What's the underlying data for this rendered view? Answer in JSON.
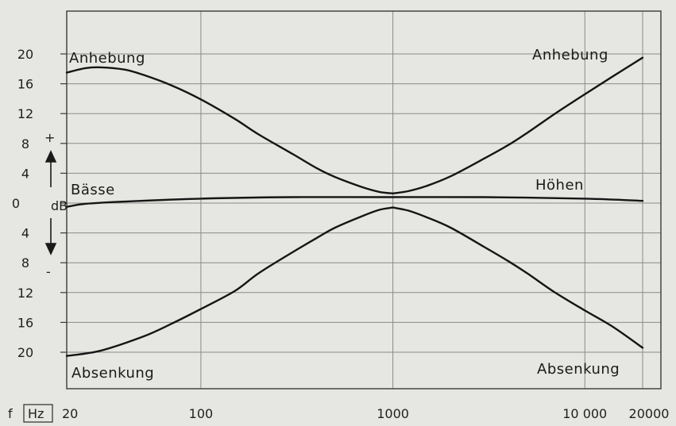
{
  "chart_data": {
    "type": "line",
    "x_scale": "log",
    "xlim": [
      20,
      20000
    ],
    "ylim": [
      -20,
      20
    ],
    "grid": true,
    "x_ticks": [
      {
        "value": 20,
        "label": "20"
      },
      {
        "value": 100,
        "label": "100"
      },
      {
        "value": 1000,
        "label": "1000"
      },
      {
        "value": 10000,
        "label": "10 000"
      },
      {
        "value": 20000,
        "label": "20000"
      }
    ],
    "y_ticks": [
      {
        "value": 20,
        "label": "20"
      },
      {
        "value": 16,
        "label": "16"
      },
      {
        "value": 12,
        "label": "12"
      },
      {
        "value": 8,
        "label": "8"
      },
      {
        "value": 4,
        "label": "4"
      },
      {
        "value": 0,
        "label": "0"
      },
      {
        "value": -4,
        "label": "4"
      },
      {
        "value": -8,
        "label": "8"
      },
      {
        "value": -12,
        "label": "12"
      },
      {
        "value": -16,
        "label": "16"
      },
      {
        "value": -20,
        "label": "20"
      }
    ],
    "x_unit_prefix": "f",
    "x_unit": "Hz",
    "y_unit": "dB",
    "plus_sign": "+",
    "minus_sign": "-",
    "annotations": {
      "boost_left": "Anhebung",
      "boost_right": "Anhebung",
      "cut_left": "Absenkung",
      "cut_right": "Absenkung",
      "bass": "Bässe",
      "treble": "Höhen"
    },
    "series": [
      {
        "key": "bass_boost",
        "x": [
          20,
          25,
          30,
          40,
          50,
          70,
          100,
          150,
          200,
          300,
          400,
          500,
          700,
          850,
          1000
        ],
        "y": [
          17.5,
          18.1,
          18.2,
          17.9,
          17.2,
          15.8,
          13.9,
          11.3,
          9.2,
          6.6,
          4.7,
          3.5,
          2.1,
          1.5,
          1.3
        ]
      },
      {
        "key": "bass_cut",
        "x": [
          20,
          30,
          50,
          70,
          100,
          150,
          200,
          300,
          400,
          500,
          700,
          850,
          1000
        ],
        "y": [
          -20.5,
          -19.8,
          -17.9,
          -16.2,
          -14.2,
          -11.8,
          -9.4,
          -6.6,
          -4.7,
          -3.3,
          -1.7,
          -0.9,
          -0.6
        ]
      },
      {
        "key": "treble_boost",
        "x": [
          1000,
          1200,
          1500,
          2000,
          3000,
          4000,
          5000,
          7000,
          10000,
          14000,
          20000
        ],
        "y": [
          1.3,
          1.6,
          2.3,
          3.6,
          6.0,
          7.8,
          9.4,
          12.0,
          14.6,
          17.0,
          19.5
        ]
      },
      {
        "key": "treble_cut",
        "x": [
          1000,
          1200,
          1500,
          2000,
          3000,
          4000,
          5000,
          7000,
          10000,
          14000,
          20000
        ],
        "y": [
          -0.6,
          -1.0,
          -1.9,
          -3.3,
          -5.9,
          -7.8,
          -9.4,
          -12.0,
          -14.4,
          -16.6,
          -19.4
        ]
      },
      {
        "key": "flat",
        "x": [
          20,
          25,
          40,
          100,
          300,
          1000,
          3000,
          10000,
          20000
        ],
        "y": [
          -0.5,
          -0.1,
          0.2,
          0.6,
          0.8,
          0.8,
          0.8,
          0.6,
          0.3
        ]
      }
    ]
  }
}
